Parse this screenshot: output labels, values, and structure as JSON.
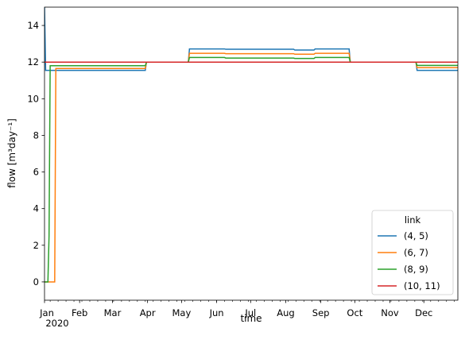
{
  "chart_data": {
    "type": "line",
    "xlabel": "time",
    "ylabel": "flow [m³day⁻¹]",
    "ylim": [
      -1,
      15
    ],
    "xlim": [
      "2020-01-01",
      "2020-12-31"
    ],
    "yticks": [
      0,
      2,
      4,
      6,
      8,
      10,
      12,
      14
    ],
    "xticks": [
      {
        "x": "2020-01-01",
        "label": "Jan",
        "sublabel": "2020"
      },
      {
        "x": "2020-02-01",
        "label": "Feb"
      },
      {
        "x": "2020-03-01",
        "label": "Mar"
      },
      {
        "x": "2020-04-01",
        "label": "Apr"
      },
      {
        "x": "2020-05-01",
        "label": "May"
      },
      {
        "x": "2020-06-01",
        "label": "Jun"
      },
      {
        "x": "2020-07-01",
        "label": "Jul"
      },
      {
        "x": "2020-08-01",
        "label": "Aug"
      },
      {
        "x": "2020-09-01",
        "label": "Sep"
      },
      {
        "x": "2020-10-01",
        "label": "Oct"
      },
      {
        "x": "2020-11-01",
        "label": "Nov"
      },
      {
        "x": "2020-12-01",
        "label": "Dec"
      }
    ],
    "grid": false,
    "legend": {
      "title": "link",
      "placement": "lower-right"
    },
    "series": [
      {
        "name": "(4, 5)",
        "color": "#1f77b4",
        "points": [
          [
            "2020-01-01",
            15.0
          ],
          [
            "2020-01-02",
            11.55
          ],
          [
            "2020-03-30",
            11.55
          ],
          [
            "2020-03-31",
            12.0
          ],
          [
            "2020-05-07",
            12.0
          ],
          [
            "2020-05-08",
            12.72
          ],
          [
            "2020-06-08",
            12.72
          ],
          [
            "2020-06-09",
            12.7
          ],
          [
            "2020-08-08",
            12.7
          ],
          [
            "2020-08-09",
            12.66
          ],
          [
            "2020-08-26",
            12.66
          ],
          [
            "2020-08-27",
            12.72
          ],
          [
            "2020-09-26",
            12.72
          ],
          [
            "2020-09-27",
            12.0
          ],
          [
            "2020-11-24",
            12.0
          ],
          [
            "2020-11-25",
            11.55
          ],
          [
            "2020-12-31",
            11.55
          ]
        ]
      },
      {
        "name": "(6, 7)",
        "color": "#ff7f0e",
        "points": [
          [
            "2020-01-01",
            0.0
          ],
          [
            "2020-01-10",
            0.0
          ],
          [
            "2020-01-11",
            11.65
          ],
          [
            "2020-03-30",
            11.65
          ],
          [
            "2020-03-31",
            12.0
          ],
          [
            "2020-05-07",
            12.0
          ],
          [
            "2020-05-08",
            12.48
          ],
          [
            "2020-06-08",
            12.48
          ],
          [
            "2020-06-09",
            12.46
          ],
          [
            "2020-08-08",
            12.46
          ],
          [
            "2020-08-09",
            12.43
          ],
          [
            "2020-08-26",
            12.43
          ],
          [
            "2020-08-27",
            12.48
          ],
          [
            "2020-09-26",
            12.48
          ],
          [
            "2020-09-27",
            12.0
          ],
          [
            "2020-11-24",
            12.0
          ],
          [
            "2020-11-25",
            11.7
          ],
          [
            "2020-12-31",
            11.7
          ]
        ]
      },
      {
        "name": "(8, 9)",
        "color": "#2ca02c",
        "points": [
          [
            "2020-01-01",
            0.0
          ],
          [
            "2020-01-04",
            0.0
          ],
          [
            "2020-01-05",
            2.5
          ],
          [
            "2020-01-06",
            11.8
          ],
          [
            "2020-03-30",
            11.8
          ],
          [
            "2020-03-31",
            12.0
          ],
          [
            "2020-05-07",
            12.0
          ],
          [
            "2020-05-08",
            12.25
          ],
          [
            "2020-06-08",
            12.25
          ],
          [
            "2020-06-09",
            12.22
          ],
          [
            "2020-08-08",
            12.22
          ],
          [
            "2020-08-09",
            12.2
          ],
          [
            "2020-08-26",
            12.2
          ],
          [
            "2020-08-27",
            12.25
          ],
          [
            "2020-09-26",
            12.25
          ],
          [
            "2020-09-27",
            12.0
          ],
          [
            "2020-11-24",
            12.0
          ],
          [
            "2020-11-25",
            11.82
          ],
          [
            "2020-12-31",
            11.82
          ]
        ]
      },
      {
        "name": "(10, 11)",
        "color": "#d62728",
        "points": [
          [
            "2020-01-01",
            12.0
          ],
          [
            "2020-12-31",
            12.0
          ]
        ]
      }
    ]
  }
}
